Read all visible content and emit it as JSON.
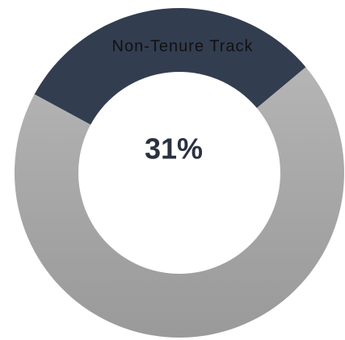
{
  "chart_data": {
    "type": "donut",
    "categories": [
      "Non-Tenure Track",
      null
    ],
    "values": [
      31,
      69
    ],
    "value_labels": [
      "31%",
      null
    ],
    "colors": [
      "#333d50",
      "#ababab"
    ]
  }
}
